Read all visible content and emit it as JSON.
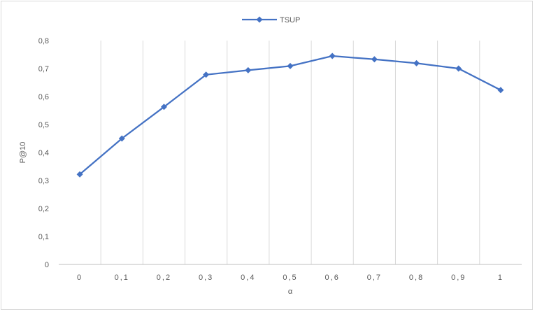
{
  "chart_data": {
    "type": "line",
    "x": [
      "0",
      "0,1",
      "0,2",
      "0,3",
      "0,4",
      "0,5",
      "0,6",
      "0,7",
      "0,8",
      "0,9",
      "1"
    ],
    "series": [
      {
        "name": "TSUP",
        "color": "#4472c4",
        "marker": "diamond",
        "values": [
          0.322,
          0.45,
          0.563,
          0.678,
          0.694,
          0.709,
          0.745,
          0.733,
          0.719,
          0.7,
          0.623
        ]
      }
    ],
    "xlabel": "α",
    "ylabel": "P@10",
    "ylim": [
      0,
      0.8
    ],
    "yticks": [
      0,
      0.1,
      0.2,
      0.3,
      0.4,
      0.5,
      0.6,
      0.7,
      0.8
    ],
    "yticklabels": [
      "0",
      "0,1",
      "0,2",
      "0,3",
      "0,4",
      "0,5",
      "0,6",
      "0,7",
      "0,8"
    ],
    "grid": "vertical",
    "legend": "top-center",
    "gridline_color": "#d9d9d9",
    "axis_color": "#bfbfbf"
  }
}
